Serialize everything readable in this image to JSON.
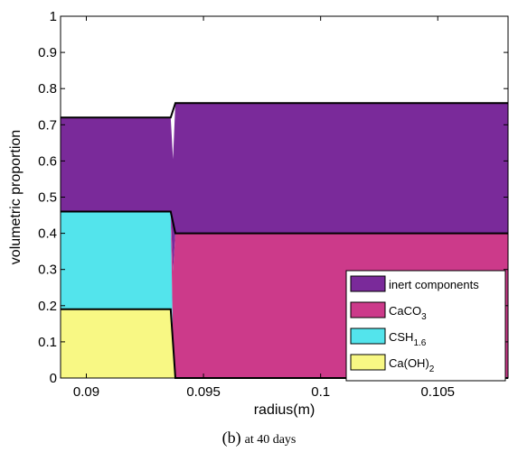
{
  "caption": {
    "label": "(b)",
    "detail": "at 40 days"
  },
  "chart_data": {
    "type": "area",
    "title": "",
    "xlabel": "radius(m)",
    "ylabel": "volumetric proportion",
    "xlim": [
      0.0889,
      0.108
    ],
    "ylim": [
      0,
      1
    ],
    "xticks": [
      0.09,
      0.095,
      0.1,
      0.105
    ],
    "xtick_labels": [
      "0.09",
      "0.095",
      "0.1",
      "0.105"
    ],
    "yticks": [
      0,
      0.1,
      0.2,
      0.3,
      0.4,
      0.5,
      0.6,
      0.7,
      0.8,
      0.9,
      1
    ],
    "ytick_labels": [
      "0",
      "0.1",
      "0.2",
      "0.3",
      "0.4",
      "0.5",
      "0.6",
      "0.7",
      "0.8",
      "0.9",
      "1"
    ],
    "grid": false,
    "legend_position": "bottom-right",
    "stacked": true,
    "series": [
      {
        "name": "Ca(OH)",
        "subscript": "2",
        "color": "#f8f884",
        "x": [
          0.0889,
          0.0936,
          0.0938,
          0.108
        ],
        "y": [
          0.19,
          0.19,
          0.0,
          0.0
        ]
      },
      {
        "name": "CSH",
        "subscript": "1.6",
        "color": "#53e4ec",
        "x": [
          0.0889,
          0.0936,
          0.0937,
          0.108
        ],
        "y": [
          0.27,
          0.27,
          0.0,
          0.0
        ]
      },
      {
        "name": "CaCO",
        "subscript": "3",
        "color": "#cc3a8a",
        "x": [
          0.0889,
          0.0936,
          0.0938,
          0.108
        ],
        "y": [
          0.0,
          0.0,
          0.4,
          0.4
        ]
      },
      {
        "name": "inert components",
        "subscript": "",
        "color": "#7a2a9a",
        "x": [
          0.0889,
          0.0936,
          0.0938,
          0.108
        ],
        "y": [
          0.26,
          0.26,
          0.36,
          0.36
        ]
      }
    ],
    "boundaries": [
      {
        "x": [
          0.0889,
          0.0936,
          0.0938,
          0.108
        ],
        "y": [
          0.19,
          0.19,
          0.0,
          0.0
        ]
      },
      {
        "x": [
          0.0889,
          0.0936,
          0.0937,
          0.0938,
          0.108
        ],
        "y": [
          0.46,
          0.46,
          0.43,
          0.4,
          0.4
        ]
      },
      {
        "x": [
          0.0889,
          0.0936,
          0.0938,
          0.108
        ],
        "y": [
          0.72,
          0.72,
          0.76,
          0.76
        ]
      }
    ]
  }
}
